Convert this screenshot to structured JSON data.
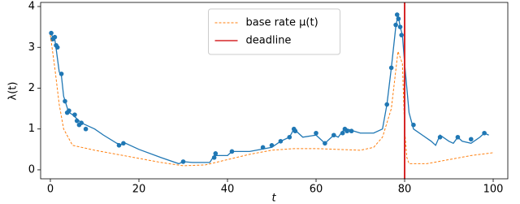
{
  "chart_data": {
    "type": "line",
    "xlabel": "t",
    "ylabel": "λ(t)",
    "xlim": [
      -2.2,
      103.3
    ],
    "ylim": [
      -0.22,
      4.1
    ],
    "xticks": [
      0,
      20,
      40,
      60,
      80,
      100
    ],
    "yticks": [
      0,
      1,
      2,
      3,
      4
    ],
    "grid": false,
    "legend": "upper center",
    "series": [
      {
        "kind": "line",
        "color": "#1f77b4",
        "x": [
          0,
          0.5,
          1,
          1.2,
          2,
          2.5,
          3,
          3.3,
          4,
          4.3,
          5,
          6,
          6.5,
          7,
          8,
          9,
          10,
          12,
          15,
          16,
          17,
          20,
          25,
          29,
          30,
          32,
          36,
          37,
          40,
          41,
          45,
          50,
          52,
          54,
          55,
          57,
          60,
          62,
          63,
          64,
          65,
          66,
          67,
          70,
          73,
          75,
          76,
          77,
          78,
          78.5,
          79,
          79.5,
          80,
          81,
          82,
          84,
          86,
          87,
          88,
          90,
          91,
          92,
          93,
          95,
          97,
          98,
          99
        ],
        "values": [
          3.4,
          3.25,
          3.2,
          3.05,
          2.4,
          2.3,
          1.8,
          1.7,
          1.45,
          1.4,
          1.35,
          1.25,
          1.2,
          1.15,
          1.1,
          1.05,
          1.0,
          0.85,
          0.65,
          0.62,
          0.65,
          0.5,
          0.3,
          0.15,
          0.2,
          0.18,
          0.18,
          0.35,
          0.35,
          0.45,
          0.45,
          0.55,
          0.7,
          0.8,
          1.0,
          0.8,
          0.85,
          0.65,
          0.75,
          0.85,
          0.8,
          0.95,
          1.0,
          0.9,
          0.9,
          1.0,
          1.6,
          2.5,
          3.5,
          3.8,
          3.5,
          3.3,
          2.6,
          1.4,
          1.0,
          0.85,
          0.7,
          0.6,
          0.85,
          0.7,
          0.65,
          0.8,
          0.7,
          0.65,
          0.8,
          0.9,
          0.85
        ]
      },
      {
        "kind": "scatter",
        "color": "#1f77b4",
        "x": [
          0.2,
          0.5,
          1,
          1.3,
          1.6,
          2.5,
          3.3,
          3.8,
          4.2,
          5.5,
          6,
          6.5,
          7,
          8,
          15.5,
          16.5,
          30,
          37,
          37.3,
          41,
          48,
          50,
          52,
          54,
          55,
          55.3,
          60,
          62,
          64,
          66,
          66.5,
          67,
          68,
          76,
          77,
          78,
          78.3,
          78.6,
          79,
          79.3,
          82,
          88,
          92,
          95,
          98
        ],
        "values": [
          3.35,
          3.2,
          3.25,
          3.05,
          3.0,
          2.35,
          1.68,
          1.4,
          1.45,
          1.35,
          1.2,
          1.1,
          1.15,
          1.0,
          0.6,
          0.65,
          0.2,
          0.3,
          0.4,
          0.45,
          0.55,
          0.6,
          0.7,
          0.8,
          1.0,
          0.95,
          0.9,
          0.65,
          0.85,
          0.9,
          1.0,
          0.95,
          0.95,
          1.6,
          2.5,
          3.55,
          3.8,
          3.7,
          3.5,
          3.3,
          1.1,
          0.8,
          0.8,
          0.75,
          0.9
        ]
      },
      {
        "kind": "dashed",
        "name": "base rate μ(t)",
        "color": "#ff7f0e",
        "x": [
          0,
          1,
          2,
          3,
          5,
          10,
          15,
          20,
          25,
          30,
          35,
          40,
          45,
          50,
          55,
          60,
          65,
          70,
          73,
          75,
          77,
          78.5,
          79.5,
          80,
          80.5,
          81,
          85,
          90,
          95,
          100
        ],
        "values": [
          3.3,
          2.5,
          1.6,
          1.0,
          0.6,
          0.48,
          0.38,
          0.28,
          0.18,
          0.1,
          0.12,
          0.25,
          0.38,
          0.48,
          0.52,
          0.52,
          0.5,
          0.48,
          0.55,
          0.8,
          1.5,
          2.9,
          2.6,
          1.0,
          0.3,
          0.15,
          0.15,
          0.25,
          0.35,
          0.42
        ]
      },
      {
        "kind": "vline",
        "name": "deadline",
        "color": "#d62728",
        "x": 80
      }
    ]
  }
}
